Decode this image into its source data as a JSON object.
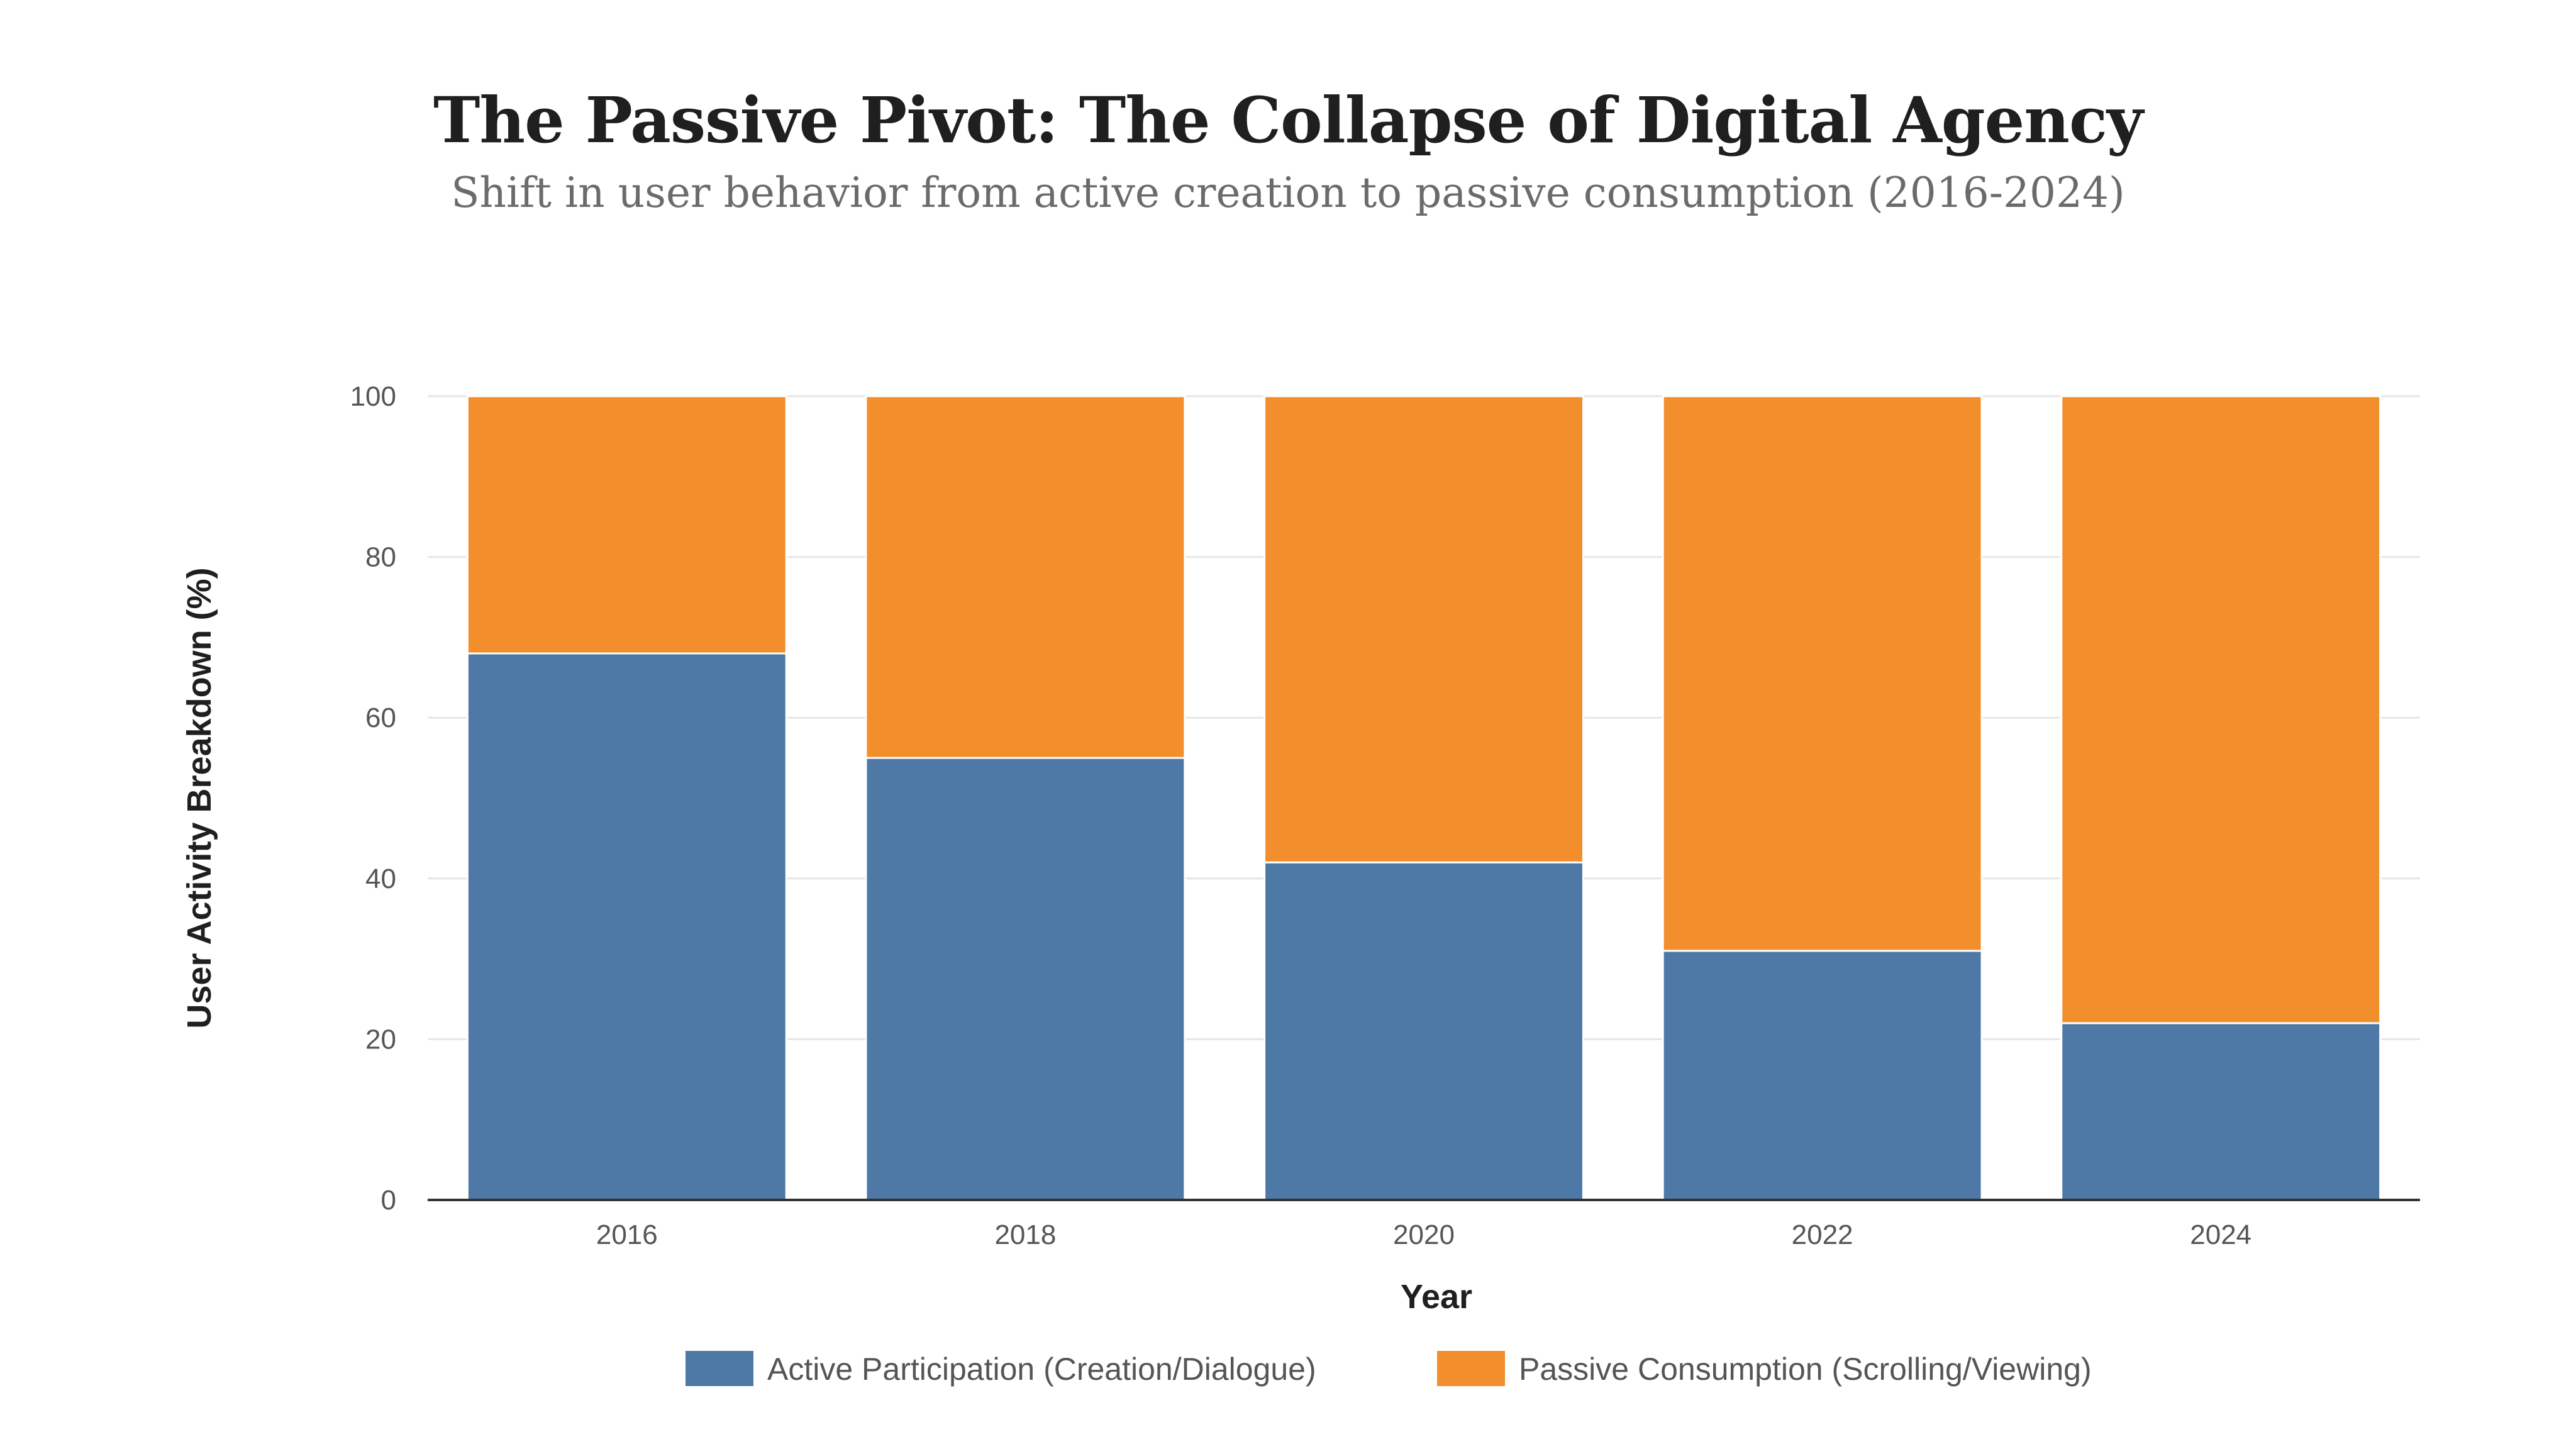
{
  "title": "The Passive Pivot: The Collapse of Digital Agency",
  "subtitle": "Shift in user behavior from active creation to passive consumption (2016-2024)",
  "colors": {
    "active": "#4e79a7",
    "passive": "#f28e2b",
    "grid": "#e6e6e6",
    "axis": "#333333"
  },
  "chart_data": {
    "type": "bar",
    "stacked": true,
    "categories": [
      "2016",
      "2018",
      "2020",
      "2022",
      "2024"
    ],
    "series": [
      {
        "name": "Active Participation (Creation/Dialogue)",
        "values": [
          68,
          55,
          42,
          31,
          22
        ]
      },
      {
        "name": "Passive Consumption (Scrolling/Viewing)",
        "values": [
          32,
          45,
          58,
          69,
          78
        ]
      }
    ],
    "xlabel": "Year",
    "ylabel": "User Activity Breakdown (%)",
    "ylim": [
      0,
      100
    ],
    "yticks": [
      0,
      20,
      40,
      60,
      80,
      100
    ],
    "grid": true,
    "legend_position": "bottom"
  }
}
